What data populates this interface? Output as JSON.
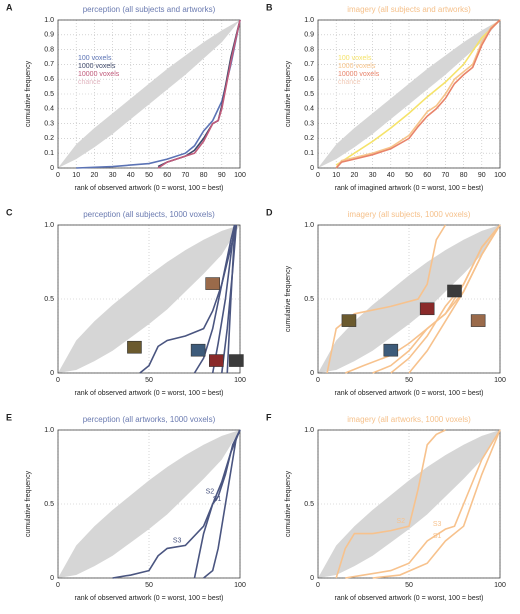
{
  "chart_data": [
    {
      "type": "line",
      "label": "A",
      "title": "perception (all subjects and artworks)",
      "title_color": "#6a7ab0",
      "xlabel": "rank of observed artwork (0 = worst, 100 = best)",
      "ylabel": "cumulative frequency",
      "xlim": [
        0,
        100
      ],
      "ylim": [
        0,
        1
      ],
      "xticks": [
        0,
        10,
        20,
        30,
        40,
        50,
        60,
        70,
        80,
        90,
        100
      ],
      "yticks": [
        0,
        0.1,
        0.2,
        0.3,
        0.4,
        0.5,
        0.6,
        0.7,
        0.8,
        0.9,
        {
          "value": 1,
          "label": "1.0"
        }
      ],
      "grid": true,
      "legend": true,
      "band": {
        "name": "chance",
        "color": "#d6d6d6",
        "legend_color": "#e2b8c2",
        "x": [
          0,
          10,
          20,
          30,
          40,
          50,
          60,
          70,
          80,
          90,
          100
        ],
        "lower": [
          0,
          0.06,
          0.14,
          0.23,
          0.33,
          0.43,
          0.53,
          0.63,
          0.74,
          0.85,
          1
        ],
        "upper": [
          0,
          0.16,
          0.27,
          0.37,
          0.47,
          0.57,
          0.67,
          0.76,
          0.85,
          0.93,
          1
        ]
      },
      "series": [
        {
          "name": "100 voxels",
          "color": "#5b73b5",
          "x": [
            10,
            30,
            50,
            60,
            70,
            75,
            80,
            85,
            90,
            95,
            100
          ],
          "values": [
            0,
            0.01,
            0.03,
            0.06,
            0.1,
            0.15,
            0.25,
            0.32,
            0.45,
            0.7,
            1
          ]
        },
        {
          "name": "1000 voxels",
          "color": "#404a6b",
          "x": [
            55,
            60,
            70,
            75,
            80,
            85,
            88,
            90,
            95,
            100
          ],
          "values": [
            0.01,
            0.04,
            0.08,
            0.12,
            0.2,
            0.3,
            0.32,
            0.42,
            0.75,
            1
          ]
        },
        {
          "name": "10000 voxels",
          "color": "#c05a7a",
          "x": [
            55,
            60,
            70,
            75,
            80,
            85,
            88,
            90,
            95,
            100
          ],
          "values": [
            0,
            0.04,
            0.08,
            0.1,
            0.18,
            0.3,
            0.32,
            0.4,
            0.72,
            1
          ]
        }
      ]
    },
    {
      "type": "line",
      "label": "B",
      "title": "imagery (all subjects and artworks)",
      "title_color": "#f5c08a",
      "xlabel": "rank of imagined artwork (0 = worst, 100 = best)",
      "ylabel": "cumulative frequency",
      "xlim": [
        0,
        100
      ],
      "ylim": [
        0,
        1
      ],
      "xticks": [
        0,
        10,
        20,
        30,
        40,
        50,
        60,
        70,
        80,
        90,
        100
      ],
      "yticks": [
        0,
        0.1,
        0.2,
        0.3,
        0.4,
        0.5,
        0.6,
        0.7,
        0.8,
        0.9,
        {
          "value": 1,
          "label": "1.0"
        }
      ],
      "grid": true,
      "legend": true,
      "band": {
        "name": "chance",
        "color": "#d6d6d6",
        "legend_color": "#f2cbb8",
        "x": [
          0,
          10,
          20,
          30,
          40,
          50,
          60,
          70,
          80,
          90,
          100
        ],
        "lower": [
          0,
          0.06,
          0.14,
          0.23,
          0.33,
          0.43,
          0.53,
          0.63,
          0.74,
          0.85,
          1
        ],
        "upper": [
          0,
          0.16,
          0.27,
          0.37,
          0.47,
          0.57,
          0.67,
          0.76,
          0.85,
          0.93,
          1
        ]
      },
      "series": [
        {
          "name": "100 voxels",
          "color": "#f5e36a",
          "x": [
            10,
            15,
            20,
            30,
            40,
            50,
            60,
            70,
            80,
            90,
            100
          ],
          "values": [
            0.02,
            0.06,
            0.1,
            0.18,
            0.27,
            0.37,
            0.48,
            0.58,
            0.7,
            0.88,
            1
          ]
        },
        {
          "name": "1000 voxels",
          "color": "#f7c48a",
          "x": [
            10,
            13,
            20,
            30,
            40,
            50,
            55,
            60,
            65,
            70,
            75,
            80,
            85,
            90,
            95,
            100
          ],
          "values": [
            0,
            0.05,
            0.07,
            0.1,
            0.14,
            0.22,
            0.3,
            0.38,
            0.42,
            0.5,
            0.6,
            0.65,
            0.7,
            0.85,
            0.95,
            1
          ]
        },
        {
          "name": "10000 voxels",
          "color": "#e8836a",
          "x": [
            10,
            13,
            20,
            30,
            40,
            50,
            55,
            60,
            65,
            70,
            75,
            80,
            85,
            90,
            95,
            100
          ],
          "values": [
            0,
            0.04,
            0.06,
            0.09,
            0.13,
            0.2,
            0.28,
            0.35,
            0.4,
            0.47,
            0.57,
            0.63,
            0.68,
            0.83,
            0.94,
            1
          ]
        }
      ]
    },
    {
      "type": "line",
      "label": "C",
      "title": "perception (all subjects, 1000 voxels)",
      "title_color": "#6a7ab0",
      "xlabel": "rank of observed artwork (0 = worst, 100 = best)",
      "xlim": [
        0,
        100
      ],
      "ylim": [
        0,
        1
      ],
      "xticks": [
        0,
        50,
        100
      ],
      "yticks": [
        0,
        0.5,
        {
          "value": 1,
          "label": "1.0"
        }
      ],
      "grid": true,
      "legend": false,
      "band": {
        "color": "#d6d6d6",
        "x": [
          0,
          10,
          20,
          30,
          40,
          50,
          60,
          70,
          80,
          90,
          100
        ],
        "lower": [
          0,
          0.02,
          0.08,
          0.15,
          0.24,
          0.33,
          0.43,
          0.55,
          0.67,
          0.8,
          1
        ],
        "upper": [
          0,
          0.22,
          0.35,
          0.46,
          0.56,
          0.66,
          0.75,
          0.83,
          0.9,
          0.96,
          1
        ]
      },
      "series": [
        {
          "color": "#4a5580",
          "x": [
            45,
            50,
            55,
            60,
            70,
            80,
            85,
            90,
            95,
            98
          ],
          "values": [
            0,
            0.05,
            0.18,
            0.22,
            0.25,
            0.3,
            0.42,
            0.6,
            0.85,
            1
          ]
        },
        {
          "color": "#4a5580",
          "x": [
            75,
            80,
            85,
            90,
            95,
            97
          ],
          "values": [
            0,
            0.1,
            0.3,
            0.6,
            0.9,
            1
          ]
        },
        {
          "color": "#4a5580",
          "x": [
            85,
            88,
            92,
            95,
            97
          ],
          "values": [
            0,
            0.2,
            0.5,
            0.8,
            1
          ]
        },
        {
          "color": "#4a5580",
          "x": [
            90,
            93,
            96,
            98
          ],
          "values": [
            0,
            0.3,
            0.7,
            1
          ]
        },
        {
          "color": "#4a5580",
          "x": [
            93,
            95,
            97,
            98
          ],
          "values": [
            0,
            0.5,
            0.95,
            1
          ]
        }
      ]
    },
    {
      "type": "line",
      "label": "D",
      "title": "imagery (all subjects, 1000 voxels)",
      "title_color": "#f5c08a",
      "xlabel": "rank of observed artwork (0 = worst, 100 = best)",
      "ylabel": "cumulative frequency",
      "xlim": [
        0,
        100
      ],
      "ylim": [
        0,
        1
      ],
      "xticks": [
        0,
        50,
        100
      ],
      "yticks": [
        0,
        0.5,
        {
          "value": 1,
          "label": "1.0"
        }
      ],
      "grid": true,
      "legend": false,
      "band": {
        "color": "#d6d6d6",
        "x": [
          0,
          10,
          20,
          30,
          40,
          50,
          60,
          70,
          80,
          90,
          100
        ],
        "lower": [
          0,
          0.02,
          0.08,
          0.15,
          0.24,
          0.33,
          0.43,
          0.55,
          0.67,
          0.8,
          1
        ],
        "upper": [
          0,
          0.22,
          0.35,
          0.46,
          0.56,
          0.66,
          0.75,
          0.83,
          0.9,
          0.96,
          1
        ]
      },
      "series": [
        {
          "color": "#f7c28d",
          "x": [
            5,
            10,
            20,
            40,
            55,
            60,
            65,
            70
          ],
          "values": [
            0,
            0.3,
            0.4,
            0.45,
            0.5,
            0.6,
            0.9,
            1
          ]
        },
        {
          "color": "#f7c28d",
          "x": [
            15,
            25,
            40,
            50,
            60,
            70,
            80,
            90,
            100
          ],
          "values": [
            0,
            0.05,
            0.12,
            0.2,
            0.3,
            0.4,
            0.6,
            0.85,
            1
          ]
        },
        {
          "color": "#f7c28d",
          "x": [
            30,
            40,
            50,
            60,
            70,
            80,
            90,
            100
          ],
          "values": [
            0,
            0.05,
            0.15,
            0.3,
            0.4,
            0.55,
            0.8,
            1
          ]
        },
        {
          "color": "#f7c28d",
          "x": [
            40,
            50,
            60,
            70,
            80,
            90,
            100
          ],
          "values": [
            0,
            0.1,
            0.25,
            0.45,
            0.6,
            0.85,
            1
          ]
        },
        {
          "color": "#f7c28d",
          "x": [
            50,
            60,
            70,
            80,
            90,
            100
          ],
          "values": [
            0,
            0.15,
            0.35,
            0.55,
            0.8,
            1
          ]
        }
      ]
    },
    {
      "type": "line",
      "label": "E",
      "title": "perception (all artworks, 1000 voxels)",
      "title_color": "#6a7ab0",
      "xlabel": "rank of observed artwork (0 = worst, 100 = best)",
      "ylabel": "cumulative frequency",
      "xlim": [
        0,
        100
      ],
      "ylim": [
        0,
        1
      ],
      "xticks": [
        0,
        50,
        100
      ],
      "yticks": [
        0,
        0.5,
        {
          "value": 1,
          "label": "1.0"
        }
      ],
      "grid": true,
      "legend": false,
      "band": {
        "color": "#d6d6d6",
        "x": [
          0,
          10,
          20,
          30,
          40,
          50,
          60,
          70,
          80,
          90,
          100
        ],
        "lower": [
          0,
          0.02,
          0.08,
          0.15,
          0.24,
          0.33,
          0.43,
          0.55,
          0.67,
          0.8,
          1
        ],
        "upper": [
          0,
          0.22,
          0.35,
          0.46,
          0.56,
          0.66,
          0.75,
          0.83,
          0.9,
          0.96,
          1
        ]
      },
      "series": [
        {
          "name": "S3",
          "color": "#4a5580",
          "x": [
            30,
            40,
            50,
            55,
            60,
            70,
            80,
            85,
            90,
            95,
            100
          ],
          "values": [
            0,
            0.02,
            0.05,
            0.15,
            0.2,
            0.22,
            0.35,
            0.5,
            0.65,
            0.85,
            1
          ]
        },
        {
          "name": "S2",
          "color": "#4a5580",
          "x": [
            75,
            80,
            85,
            88,
            92,
            96,
            100
          ],
          "values": [
            0,
            0.3,
            0.5,
            0.55,
            0.7,
            0.9,
            1
          ]
        },
        {
          "name": "S1",
          "color": "#4a5580",
          "x": [
            80,
            85,
            88,
            92,
            96,
            98,
            100
          ],
          "values": [
            0,
            0.05,
            0.2,
            0.5,
            0.8,
            0.95,
            1
          ]
        }
      ]
    },
    {
      "type": "line",
      "label": "F",
      "title": "imagery (all artworks, 1000 voxels)",
      "title_color": "#f5c08a",
      "xlabel": "rank of observed artwork (0 = worst, 100 = best)",
      "ylabel": "cumulative frequency",
      "xlim": [
        0,
        100
      ],
      "ylim": [
        0,
        1
      ],
      "xticks": [
        0,
        50,
        100
      ],
      "yticks": [
        0,
        0.5,
        {
          "value": 1,
          "label": "1.0"
        }
      ],
      "grid": true,
      "legend": false,
      "band": {
        "color": "#d6d6d6",
        "x": [
          0,
          10,
          20,
          30,
          40,
          50,
          60,
          70,
          80,
          90,
          100
        ],
        "lower": [
          0,
          0.02,
          0.08,
          0.15,
          0.24,
          0.33,
          0.43,
          0.55,
          0.67,
          0.8,
          1
        ],
        "upper": [
          0,
          0.22,
          0.35,
          0.46,
          0.56,
          0.66,
          0.75,
          0.83,
          0.9,
          0.96,
          1
        ]
      },
      "series": [
        {
          "name": "S2",
          "color": "#f7c28d",
          "x": [
            10,
            15,
            20,
            30,
            40,
            50,
            55,
            60,
            65,
            70
          ],
          "values": [
            0,
            0.2,
            0.3,
            0.3,
            0.32,
            0.35,
            0.6,
            0.9,
            0.97,
            1
          ]
        },
        {
          "name": "S3",
          "color": "#f7c28d",
          "x": [
            15,
            25,
            40,
            50,
            60,
            70,
            75,
            80,
            90,
            100
          ],
          "values": [
            0,
            0.02,
            0.05,
            0.1,
            0.25,
            0.33,
            0.35,
            0.5,
            0.8,
            1
          ]
        },
        {
          "name": "S1",
          "color": "#f7c28d",
          "x": [
            30,
            45,
            60,
            70,
            80,
            90,
            100
          ],
          "values": [
            0,
            0.02,
            0.1,
            0.25,
            0.35,
            0.7,
            1
          ]
        }
      ]
    }
  ]
}
